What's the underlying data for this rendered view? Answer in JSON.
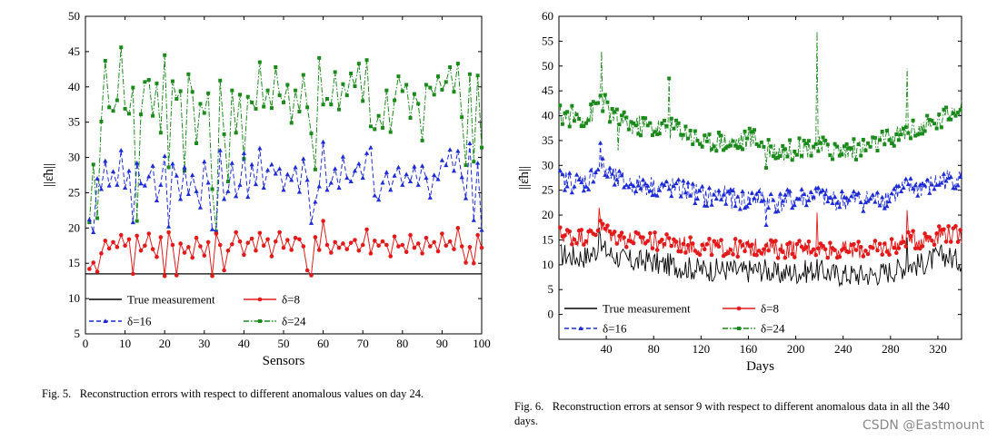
{
  "figures": [
    {
      "caption_label": "Fig. 5.",
      "caption_text": "Reconstruction errors with respect to different anomalous values on day 24."
    },
    {
      "caption_label": "Fig. 6.",
      "caption_text": "Reconstruction errors at sensor 9 with respect to different anomalous data in all the 340 days."
    }
  ],
  "watermark": "CSDN @Eastmount",
  "chart_data": [
    {
      "type": "line",
      "title": "",
      "xlabel": "Sensors",
      "ylabel": "||ε̂h||",
      "xlim": [
        0,
        100
      ],
      "ylim": [
        5,
        50
      ],
      "xticks": [
        0,
        10,
        20,
        30,
        40,
        50,
        60,
        70,
        80,
        90,
        100
      ],
      "yticks": [
        5,
        10,
        15,
        20,
        25,
        30,
        35,
        40,
        45,
        50
      ],
      "grid": false,
      "legend_position": "bottom",
      "x": [
        1,
        2,
        3,
        4,
        5,
        6,
        7,
        8,
        9,
        10,
        11,
        12,
        13,
        14,
        15,
        16,
        17,
        18,
        19,
        20,
        21,
        22,
        23,
        24,
        25,
        26,
        27,
        28,
        29,
        30,
        31,
        32,
        33,
        34,
        35,
        36,
        37,
        38,
        39,
        40,
        41,
        42,
        43,
        44,
        45,
        46,
        47,
        48,
        49,
        50,
        51,
        52,
        53,
        54,
        55,
        56,
        57,
        58,
        59,
        60,
        61,
        62,
        63,
        64,
        65,
        66,
        67,
        68,
        69,
        70,
        71,
        72,
        73,
        74,
        75,
        76,
        77,
        78,
        79,
        80,
        81,
        82,
        83,
        84,
        85,
        86,
        87,
        88,
        89,
        90,
        91,
        92,
        93,
        94,
        95,
        96,
        97,
        98,
        99,
        100
      ],
      "series": [
        {
          "name": "True measurement",
          "color": "#000000",
          "marker": "none",
          "dash": "solid",
          "values": [
            13.5,
            13.5,
            13.5,
            13.5,
            13.5,
            13.5,
            13.5,
            13.5,
            13.5,
            13.5,
            13.5,
            13.5,
            13.5,
            13.5,
            13.5,
            13.5,
            13.5,
            13.5,
            13.5,
            13.5,
            13.5,
            13.5,
            13.5,
            13.5,
            13.5,
            13.5,
            13.5,
            13.5,
            13.5,
            13.5,
            13.5,
            13.5,
            13.5,
            13.5,
            13.5,
            13.5,
            13.5,
            13.5,
            13.5,
            13.5,
            13.5,
            13.5,
            13.5,
            13.5,
            13.5,
            13.5,
            13.5,
            13.5,
            13.5,
            13.5,
            13.5,
            13.5,
            13.5,
            13.5,
            13.5,
            13.5,
            13.5,
            13.5,
            13.5,
            13.5,
            13.5,
            13.5,
            13.5,
            13.5,
            13.5,
            13.5,
            13.5,
            13.5,
            13.5,
            13.5,
            13.5,
            13.5,
            13.5,
            13.5,
            13.5,
            13.5,
            13.5,
            13.5,
            13.5,
            13.5,
            13.5,
            13.5,
            13.5,
            13.5,
            13.5,
            13.5,
            13.5,
            13.5,
            13.5,
            13.5,
            13.5,
            13.5,
            13.5,
            13.5,
            13.5,
            13.5,
            13.5,
            13.5,
            13.5,
            13.5
          ]
        },
        {
          "name": "δ=8",
          "color": "#e41a1a",
          "marker": "circle",
          "dash": "solid",
          "values": [
            14.2,
            15.1,
            13.8,
            16.4,
            18.2,
            17.1,
            18.0,
            17.3,
            19.0,
            17.5,
            18.4,
            13.5,
            18.9,
            16.8,
            17.5,
            19.2,
            17.0,
            15.9,
            18.7,
            13.2,
            19.4,
            17.6,
            13.3,
            17.8,
            16.5,
            17.3,
            15.8,
            18.6,
            17.4,
            16.1,
            18.0,
            13.2,
            19.2,
            17.6,
            14.0,
            16.8,
            17.7,
            19.4,
            18.1,
            16.2,
            17.9,
            18.5,
            16.8,
            19.3,
            17.5,
            18.4,
            16.0,
            18.1,
            19.4,
            17.2,
            18.3,
            16.9,
            18.6,
            18.4,
            17.4,
            14.0,
            13.3,
            18.7,
            16.9,
            21.0,
            17.6,
            16.5,
            18.0,
            17.2,
            17.8,
            17.0,
            17.9,
            18.3,
            16.8,
            17.6,
            19.8,
            16.4,
            18.2,
            17.5,
            18.1,
            17.6,
            16.0,
            18.8,
            17.4,
            17.6,
            16.6,
            19.0,
            17.2,
            17.8,
            16.4,
            18.6,
            17.4,
            18.0,
            16.7,
            19.2,
            17.5,
            18.1,
            17.0,
            20.0,
            17.4,
            15.1,
            17.3,
            15.0,
            19.0,
            17.2
          ]
        },
        {
          "name": "δ=16",
          "color": "#1c2bd6",
          "marker": "triangle",
          "dash": "dash",
          "values": [
            21.2,
            19.4,
            27.0,
            25.5,
            29.5,
            26.0,
            28.0,
            26.1,
            31.0,
            25.7,
            28.1,
            20.8,
            29.2,
            26.3,
            26.0,
            27.3,
            28.8,
            23.9,
            26.1,
            30.2,
            20.2,
            29.1,
            27.4,
            24.1,
            28.6,
            24.8,
            27.5,
            25.2,
            22.9,
            29.4,
            26.4,
            19.8,
            19.5,
            31.0,
            24.1,
            25.2,
            29.2,
            24.5,
            26.1,
            30.6,
            24.4,
            29.0,
            26.2,
            31.3,
            25.7,
            28.2,
            29.0,
            27.7,
            28.4,
            25.4,
            27.6,
            26.8,
            28.6,
            25.1,
            29.8,
            26.8,
            20.7,
            23.7,
            25.9,
            32.2,
            25.4,
            26.4,
            28.4,
            25.7,
            30.1,
            27.1,
            26.6,
            28.1,
            29.1,
            27.1,
            30.6,
            31.4,
            24.6,
            24.0,
            26.4,
            27.9,
            25.4,
            27.4,
            28.6,
            26.1,
            27.6,
            26.6,
            28.7,
            26.1,
            28.8,
            27.1,
            24.3,
            27.5,
            26.9,
            29.6,
            28.9,
            31.1,
            28.1,
            30.9,
            27.2,
            24.2,
            32.0,
            21.1,
            29.2,
            19.7
          ]
        },
        {
          "name": "δ=24",
          "color": "#1a8a1a",
          "marker": "square",
          "dash": "dashdot",
          "values": [
            20.8,
            29.0,
            21.4,
            35.1,
            43.7,
            37.1,
            36.6,
            38.1,
            45.6,
            36.9,
            36.2,
            39.9,
            21.0,
            36.1,
            40.7,
            41.0,
            35.9,
            40.5,
            33.5,
            44.5,
            28.6,
            40.8,
            38.3,
            39.4,
            28.1,
            41.8,
            39.3,
            32.0,
            37.6,
            36.3,
            39.1,
            25.5,
            19.5,
            40.9,
            33.3,
            26.6,
            39.5,
            33.5,
            38.9,
            29.8,
            38.6,
            37.8,
            36.9,
            43.5,
            37.2,
            39.5,
            37.0,
            42.8,
            38.8,
            37.8,
            40.3,
            34.9,
            39.5,
            36.5,
            41.7,
            37.1,
            33.4,
            28.3,
            44.1,
            37.5,
            38.3,
            37.5,
            42.1,
            36.8,
            40.4,
            38.8,
            41.9,
            40.1,
            43.3,
            38.0,
            43.8,
            34.4,
            34.0,
            35.9,
            34.2,
            39.5,
            33.6,
            38.1,
            41.5,
            39.4,
            40.3,
            35.6,
            39.0,
            37.6,
            32.4,
            40.3,
            39.9,
            38.9,
            41.5,
            39.6,
            40.7,
            42.8,
            39.3,
            43.3,
            35.7,
            28.9,
            41.8,
            29.4,
            41.6,
            31.4
          ]
        }
      ]
    },
    {
      "type": "line",
      "title": "",
      "xlabel": "Days",
      "ylabel": "||ε̂h||",
      "xlim": [
        0,
        340
      ],
      "ylim": [
        -5,
        60
      ],
      "xticks": [
        40,
        80,
        120,
        160,
        200,
        240,
        280,
        320
      ],
      "yticks": [
        0,
        5,
        10,
        15,
        20,
        25,
        30,
        35,
        40,
        45,
        50,
        55,
        60
      ],
      "grid": false,
      "legend_position": "bottom",
      "base_levels": {
        "True measurement": 10.0,
        "δ=8": 15.0,
        "δ=16": 26.0,
        "δ=24": 38.5
      },
      "series": [
        {
          "name": "True measurement",
          "color": "#000000",
          "marker": "none",
          "dash": "solid",
          "x": [
            5,
            15,
            25,
            35,
            45,
            55,
            65,
            75,
            85,
            95,
            105,
            115,
            125,
            135,
            145,
            155,
            165,
            175,
            185,
            195,
            205,
            215,
            225,
            235,
            245,
            255,
            265,
            275,
            285,
            295,
            305,
            315,
            325,
            335
          ],
          "values": [
            12.0,
            11.5,
            11.8,
            13.5,
            12.0,
            11.0,
            10.5,
            11.0,
            10.0,
            10.0,
            9.5,
            9.2,
            9.0,
            9.0,
            9.0,
            8.5,
            9.0,
            9.0,
            8.0,
            8.5,
            8.5,
            9.0,
            8.5,
            8.0,
            8.0,
            8.0,
            8.0,
            8.5,
            9.0,
            10.0,
            10.0,
            11.0,
            12.0,
            11.0
          ]
        },
        {
          "name": "δ=8",
          "color": "#e41a1a",
          "marker": "circle",
          "dash": "solid",
          "x": [
            5,
            15,
            25,
            35,
            45,
            55,
            65,
            75,
            85,
            95,
            105,
            115,
            125,
            135,
            145,
            155,
            165,
            175,
            185,
            195,
            205,
            215,
            225,
            235,
            245,
            255,
            265,
            275,
            285,
            295,
            305,
            315,
            325,
            335
          ],
          "values": [
            16.0,
            15.5,
            15.8,
            17.5,
            16.0,
            15.2,
            15.0,
            15.0,
            14.5,
            14.5,
            14.0,
            13.8,
            13.5,
            13.5,
            13.5,
            13.2,
            13.5,
            13.5,
            13.0,
            13.2,
            13.2,
            13.5,
            13.2,
            13.0,
            13.0,
            13.0,
            13.0,
            13.5,
            14.0,
            15.0,
            15.0,
            15.5,
            16.5,
            16.0
          ]
        },
        {
          "name": "δ=16",
          "color": "#1c2bd6",
          "marker": "triangle",
          "dash": "dash",
          "x": [
            5,
            15,
            25,
            35,
            45,
            55,
            65,
            75,
            85,
            95,
            105,
            115,
            125,
            135,
            145,
            155,
            165,
            175,
            185,
            195,
            205,
            215,
            225,
            235,
            245,
            255,
            265,
            275,
            285,
            295,
            305,
            315,
            325,
            335
          ],
          "values": [
            27.0,
            26.5,
            27.0,
            30.0,
            27.5,
            26.5,
            26.0,
            26.0,
            25.5,
            25.5,
            25.0,
            24.5,
            23.5,
            24.0,
            23.5,
            23.0,
            23.5,
            23.5,
            22.5,
            23.0,
            23.5,
            24.0,
            23.5,
            23.0,
            23.0,
            23.0,
            23.0,
            23.5,
            24.5,
            25.5,
            25.5,
            26.0,
            27.0,
            27.5
          ]
        },
        {
          "name": "δ=24",
          "color": "#1a8a1a",
          "marker": "square",
          "dash": "dashdot",
          "x": [
            5,
            15,
            25,
            35,
            45,
            55,
            65,
            75,
            85,
            95,
            105,
            115,
            125,
            135,
            145,
            155,
            165,
            175,
            185,
            195,
            205,
            215,
            225,
            235,
            245,
            255,
            265,
            275,
            285,
            295,
            305,
            315,
            325,
            335
          ],
          "values": [
            40.0,
            40.0,
            39.5,
            43.5,
            40.0,
            38.5,
            38.0,
            38.0,
            37.5,
            37.5,
            37.0,
            35.5,
            34.5,
            35.0,
            34.5,
            35.0,
            35.5,
            34.0,
            33.0,
            33.0,
            33.5,
            34.0,
            33.5,
            33.0,
            33.0,
            33.5,
            34.0,
            35.0,
            36.0,
            37.0,
            37.5,
            38.0,
            39.5,
            42.0
          ]
        }
      ]
    }
  ]
}
